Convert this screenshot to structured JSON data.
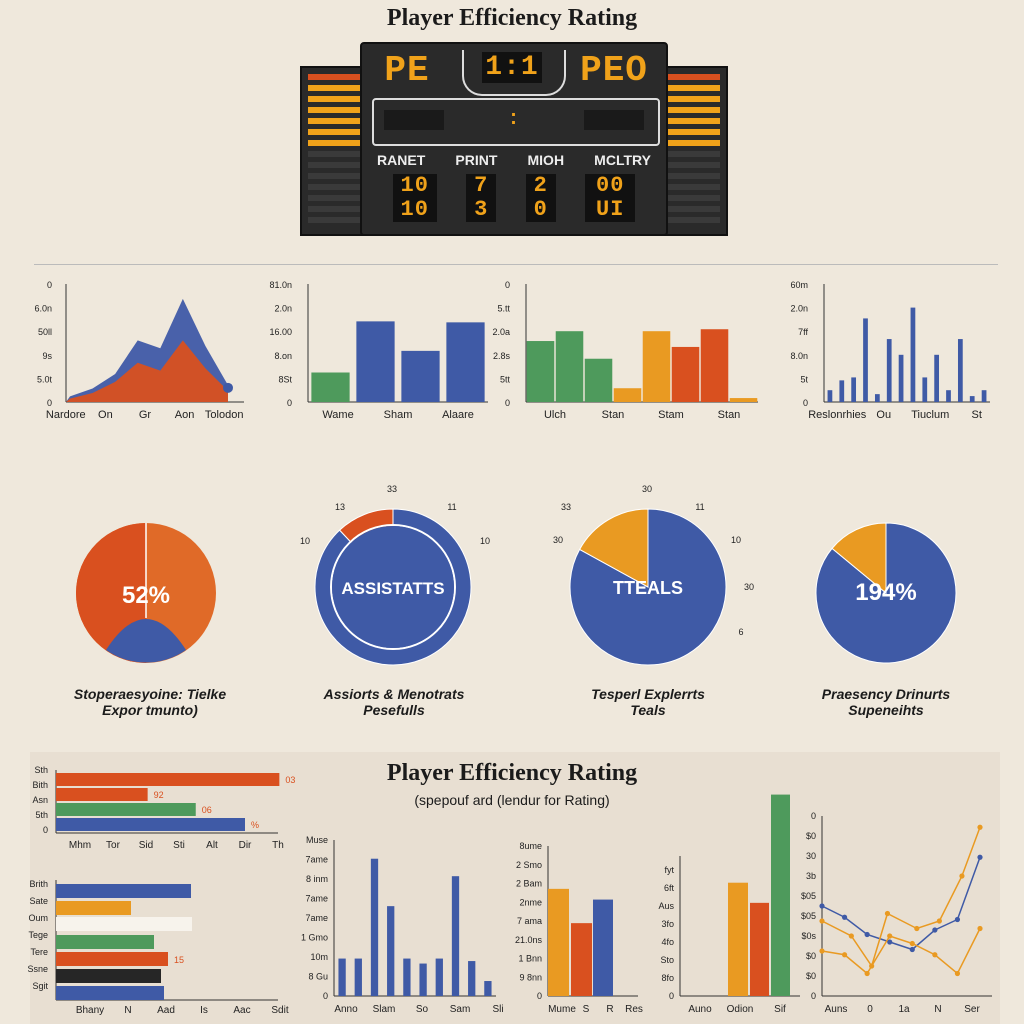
{
  "page": {
    "title": "Player Efficiency Rating",
    "bottom_title": "Player Efficiency Rating",
    "bottom_subtitle": "(spepouf ard (lendur for Rating)"
  },
  "colors": {
    "orange": "#d9501f",
    "blue": "#3f5aa6",
    "green": "#4e9a5c",
    "amber": "#e99a22",
    "dark": "#262626",
    "led": "#f0a21a"
  },
  "scoreboard": {
    "top_left": "PE",
    "top_mid": "1:1",
    "top_right": "PEO",
    "headers": [
      "RANET",
      "PRINT",
      "MIOH",
      "MCLTRY"
    ],
    "rows": [
      [
        "10",
        "7",
        "2",
        "00"
      ],
      [
        "10",
        "3",
        "0",
        "UI"
      ]
    ]
  },
  "chart_data": [
    {
      "type": "area",
      "id": "area1",
      "y_ticks": [
        "0",
        "5.0t",
        "9s",
        "50ll",
        "6.0n",
        "0"
      ],
      "x_labels": [
        "Nardore",
        "On",
        "Gr",
        "Aon",
        "Tolodon"
      ],
      "series": [
        {
          "color": "#3f5aa6",
          "values": [
            0.05,
            0.12,
            0.25,
            0.55,
            0.48,
            0.92,
            0.5,
            0.15
          ]
        },
        {
          "color": "#d9501f",
          "values": [
            0.03,
            0.08,
            0.18,
            0.35,
            0.28,
            0.55,
            0.3,
            0.1
          ]
        }
      ],
      "point": {
        "x": 7,
        "y": 0.12
      }
    },
    {
      "type": "bar",
      "id": "bar1",
      "y_ticks": [
        "0",
        "8St",
        "8.on",
        "16.00",
        "2.0n",
        "81.0n"
      ],
      "x_labels": [
        "Wame",
        "Sham",
        "Alaare"
      ],
      "bars": [
        {
          "value": 30,
          "color": "#4e9a5c"
        },
        {
          "value": 82,
          "color": "#3f5aa6"
        },
        {
          "value": 52,
          "color": "#3f5aa6"
        },
        {
          "value": 81,
          "color": "#3f5aa6"
        }
      ],
      "ylim": [
        0,
        120
      ]
    },
    {
      "type": "bar",
      "id": "bar2",
      "y_ticks": [
        "0",
        "5tt",
        "2.8s",
        "2.0a",
        "5.tt",
        "0"
      ],
      "x_labels": [
        "Ulch",
        "Stan",
        "Stam",
        "Stan"
      ],
      "bars": [
        {
          "value": 62,
          "color": "#4e9a5c"
        },
        {
          "value": 72,
          "color": "#4e9a5c"
        },
        {
          "value": 44,
          "color": "#4e9a5c"
        },
        {
          "value": 14,
          "color": "#e99a22"
        },
        {
          "value": 72,
          "color": "#e99a22"
        },
        {
          "value": 56,
          "color": "#d9501f"
        },
        {
          "value": 74,
          "color": "#d9501f"
        },
        {
          "value": 4,
          "color": "#e99a22"
        }
      ],
      "ylim": [
        0,
        120
      ]
    },
    {
      "type": "bar",
      "id": "bar3",
      "y_ticks": [
        "0",
        "5t",
        "8.0n",
        "7ff",
        "2.0n",
        "60m"
      ],
      "x_labels": [
        "Reslonrhies",
        "Ou",
        "Tiuclum",
        "St"
      ],
      "bars": [
        {
          "value": 12,
          "color": "#3f5aa6"
        },
        {
          "value": 22,
          "color": "#3f5aa6"
        },
        {
          "value": 25,
          "color": "#3f5aa6"
        },
        {
          "value": 85,
          "color": "#3f5aa6"
        },
        {
          "value": 8,
          "color": "#3f5aa6"
        },
        {
          "value": 64,
          "color": "#3f5aa6"
        },
        {
          "value": 48,
          "color": "#3f5aa6"
        },
        {
          "value": 96,
          "color": "#3f5aa6"
        },
        {
          "value": 25,
          "color": "#3f5aa6"
        },
        {
          "value": 48,
          "color": "#3f5aa6"
        },
        {
          "value": 12,
          "color": "#3f5aa6"
        },
        {
          "value": 64,
          "color": "#3f5aa6"
        },
        {
          "value": 6,
          "color": "#3f5aa6"
        },
        {
          "value": 12,
          "color": "#3f5aa6"
        }
      ],
      "ylim": [
        0,
        120
      ]
    },
    {
      "type": "pie",
      "id": "pie1",
      "center_label": "52%",
      "caption": [
        "Stoperaesyoine: Tielke",
        "Expor tmunto)"
      ],
      "outer_labels": []
    },
    {
      "type": "pie",
      "id": "pie2",
      "center_label": "ASSISTATTS",
      "caption": [
        "Assiorts & Menotrats",
        "Pesefulls"
      ],
      "slices": [
        {
          "value": 88,
          "color": "#3f5aa6"
        },
        {
          "value": 12,
          "color": "#d9501f"
        }
      ],
      "outer_labels": [
        "33",
        "13",
        "11",
        "10",
        "10"
      ]
    },
    {
      "type": "pie",
      "id": "pie3",
      "center_label": "TTEALS",
      "caption": [
        "Tesperl Explerrts",
        "Teals"
      ],
      "slices": [
        {
          "value": 83,
          "color": "#3f5aa6"
        },
        {
          "value": 17,
          "color": "#e99a22"
        }
      ],
      "outer_labels": [
        "30",
        "33",
        "11",
        "30",
        "10",
        "30",
        "6"
      ]
    },
    {
      "type": "pie",
      "id": "pie4",
      "center_label": "194%",
      "caption": [
        "Praesency Drinurts",
        "Supeneihts"
      ],
      "slices": [
        {
          "value": 86,
          "color": "#3f5aa6"
        },
        {
          "value": 14,
          "color": "#e99a22"
        }
      ],
      "outer_labels": []
    },
    {
      "type": "bar",
      "orientation": "horizontal",
      "id": "hbar1",
      "y_labels": [
        "0",
        "5th",
        "Asn",
        "Bith",
        "Sth"
      ],
      "x_labels": [
        "Mhm",
        "Tor",
        "Sid",
        "Sti",
        "Alt",
        "Dir",
        "Th"
      ],
      "bars": [
        {
          "value": 195,
          "color": "#d9501f",
          "label": "03"
        },
        {
          "value": 80,
          "color": "#d9501f",
          "label": "92"
        },
        {
          "value": 122,
          "color": "#4e9a5c",
          "label": "06"
        },
        {
          "value": 165,
          "color": "#3f5aa6",
          "label": "%"
        }
      ],
      "xlim": [
        0,
        220
      ]
    },
    {
      "type": "bar",
      "orientation": "horizontal",
      "id": "hbar2",
      "y_labels": [
        "Brith",
        "Sate",
        "Oum",
        "Tege",
        "Tere",
        "Ssne",
        "Sgit"
      ],
      "x_labels": [
        "Bhany",
        "N",
        "Aad",
        "Is",
        "Aac",
        "Sdit"
      ],
      "bars": [
        {
          "value": 135,
          "color": "#3f5aa6",
          "label": ""
        },
        {
          "value": 75,
          "color": "#e99a22",
          "label": ""
        },
        {
          "value": 0,
          "color": "#3f5aa6",
          "label": ""
        },
        {
          "value": 98,
          "color": "#4e9a5c",
          "label": ""
        },
        {
          "value": 112,
          "color": "#d9501f",
          "label": "15"
        },
        {
          "value": 105,
          "color": "#262626",
          "label": ""
        },
        {
          "value": 108,
          "color": "#3f5aa6",
          "label": ""
        }
      ],
      "xlim": [
        0,
        180
      ]
    },
    {
      "type": "bar",
      "id": "bar4",
      "y_labels": [
        "0",
        "8 Gu",
        "10m",
        "1 Gmo",
        "7ame",
        "7ame",
        "8 inm",
        "7ame",
        "Muse"
      ],
      "x_labels": [
        "Anno",
        "Slam",
        "So",
        "Sam",
        "Sli"
      ],
      "bars": [
        {
          "value": 30,
          "color": "#3f5aa6"
        },
        {
          "value": 30,
          "color": "#3f5aa6"
        },
        {
          "value": 110,
          "color": "#3f5aa6"
        },
        {
          "value": 72,
          "color": "#3f5aa6"
        },
        {
          "value": 30,
          "color": "#3f5aa6"
        },
        {
          "value": 26,
          "color": "#3f5aa6"
        },
        {
          "value": 30,
          "color": "#3f5aa6"
        },
        {
          "value": 96,
          "color": "#3f5aa6"
        },
        {
          "value": 28,
          "color": "#3f5aa6"
        },
        {
          "value": 12,
          "color": "#3f5aa6"
        }
      ],
      "ylim": [
        0,
        125
      ]
    },
    {
      "type": "bar",
      "id": "bar5",
      "y_labels": [
        "0",
        "9 8nn",
        "1 Bnn",
        "21.0ns",
        "7 ama",
        "2nme",
        "2 Bam",
        "2 Smo",
        "8ume"
      ],
      "x_labels": [
        "Mume",
        "S",
        "R",
        "Res"
      ],
      "bars": [
        {
          "value": 100,
          "color": "#e99a22"
        },
        {
          "value": 68,
          "color": "#d9501f"
        },
        {
          "value": 90,
          "color": "#3f5aa6"
        }
      ],
      "ylim": [
        0,
        140
      ]
    },
    {
      "type": "bar",
      "id": "bar6",
      "y_labels": [
        "0",
        "8fo",
        "Sto",
        "4fo",
        "3fo",
        "Aus",
        "6ft",
        "fyt"
      ],
      "x_labels": [
        "Auno",
        "Odion",
        "Sif"
      ],
      "bars": [
        {
          "value": 90,
          "color": "#e99a22"
        },
        {
          "value": 74,
          "color": "#d9501f"
        },
        {
          "value": 160,
          "color": "#4e9a5c"
        }
      ],
      "ylim": [
        0,
        170
      ]
    },
    {
      "type": "line",
      "id": "line1",
      "y_labels": [
        "0",
        "$0",
        "$0",
        "$0s",
        "$05",
        "$05",
        "3b",
        "30",
        "$0",
        "0"
      ],
      "x_labels": [
        "Auns",
        "0",
        "1a",
        "N",
        "Ser"
      ],
      "series": [
        {
          "color": "#3f5aa6",
          "values": [
            120,
            105,
            82,
            72,
            62,
            88,
            102,
            185
          ],
          "x": [
            0,
            1,
            2,
            3,
            4,
            5,
            6,
            7
          ]
        },
        {
          "color": "#e99a22",
          "values": [
            100,
            80,
            40,
            110,
            90,
            100,
            160,
            225
          ],
          "x": [
            0,
            1.3,
            2.2,
            2.9,
            4.2,
            5.2,
            6.2,
            7
          ]
        },
        {
          "color": "#e99a22",
          "values": [
            60,
            55,
            30,
            80,
            70,
            55,
            30,
            90
          ],
          "x": [
            0,
            1,
            2,
            3,
            4,
            5,
            6,
            7
          ]
        }
      ],
      "ylim": [
        0,
        240
      ]
    }
  ]
}
